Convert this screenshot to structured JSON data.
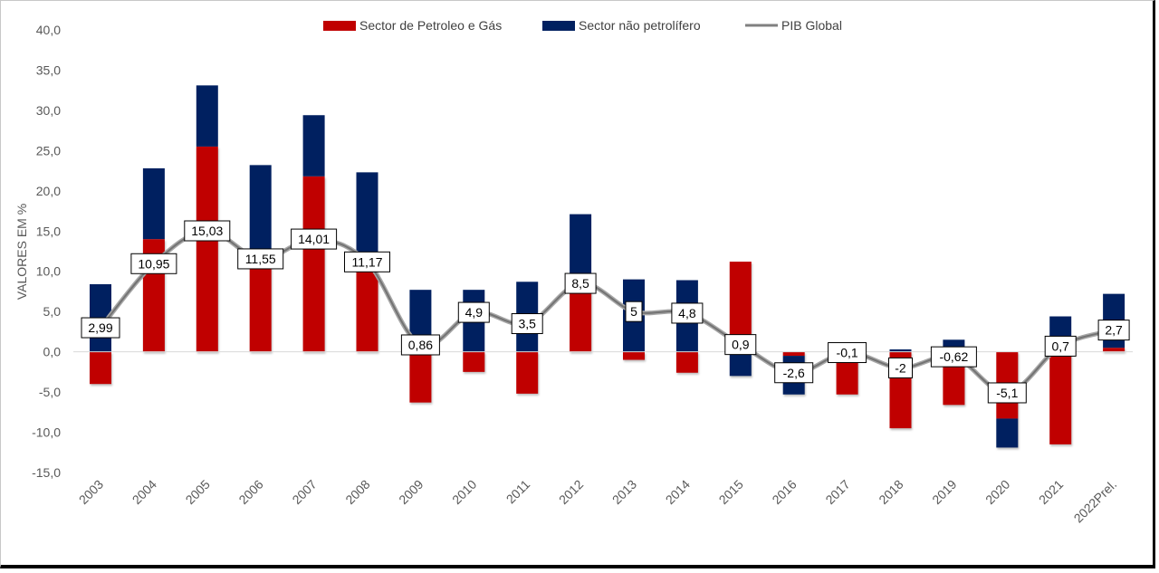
{
  "chart_data": {
    "type": "bar",
    "stacked": true,
    "ylabel": "VALORES EM %",
    "ylim": [
      -15,
      40
    ],
    "yticks": [
      "40,0",
      "35,0",
      "30,0",
      "25,0",
      "20,0",
      "15,0",
      "10,0",
      "5,0",
      "0,0",
      "-5,0",
      "-10,0",
      "-15,0"
    ],
    "ytick_values": [
      40,
      35,
      30,
      25,
      20,
      15,
      10,
      5,
      0,
      -5,
      -10,
      -15
    ],
    "categories": [
      "2003",
      "2004",
      "2005",
      "2006",
      "2007",
      "2008",
      "2009",
      "2010",
      "2011",
      "2012",
      "2013",
      "2014",
      "2015",
      "2016",
      "2017",
      "2018",
      "2019",
      "2020",
      "2021",
      "2022Prel."
    ],
    "series": [
      {
        "name": "Sector de Petroleo e Gás",
        "color": "#c00000",
        "values": [
          -4.0,
          14.0,
          25.5,
          11.5,
          21.8,
          10.0,
          -6.3,
          -2.5,
          -5.2,
          8.5,
          -1.0,
          -2.6,
          11.2,
          -0.5,
          -5.3,
          -9.5,
          -6.6,
          -8.3,
          -11.5,
          0.5
        ]
      },
      {
        "name": "Sector não petrolífero",
        "color": "#002060",
        "values": [
          8.4,
          8.8,
          7.6,
          11.7,
          7.6,
          12.3,
          7.7,
          7.7,
          8.7,
          8.6,
          9.0,
          8.9,
          -3.0,
          -4.8,
          0.0,
          0.3,
          1.5,
          -3.6,
          4.4,
          6.7
        ]
      }
    ],
    "line": {
      "name": "PIB Global",
      "color": "#808080",
      "values": [
        2.99,
        10.95,
        15.03,
        11.55,
        14.01,
        11.17,
        0.86,
        4.9,
        3.5,
        8.5,
        5,
        4.8,
        0.9,
        -2.6,
        -0.1,
        -2,
        -0.62,
        -5.1,
        0.7,
        2.7
      ],
      "labels": [
        "2,99",
        "10,95",
        "15,03",
        "11,55",
        "14,01",
        "11,17",
        "0,86",
        "4,9",
        "3,5",
        "8,5",
        "5",
        "4,8",
        "0,9",
        "-2,6",
        "-0,1",
        "-2",
        "-0,62",
        "-5,1",
        "0,7",
        "2,7"
      ]
    },
    "legend_position": "top",
    "grid": false
  }
}
